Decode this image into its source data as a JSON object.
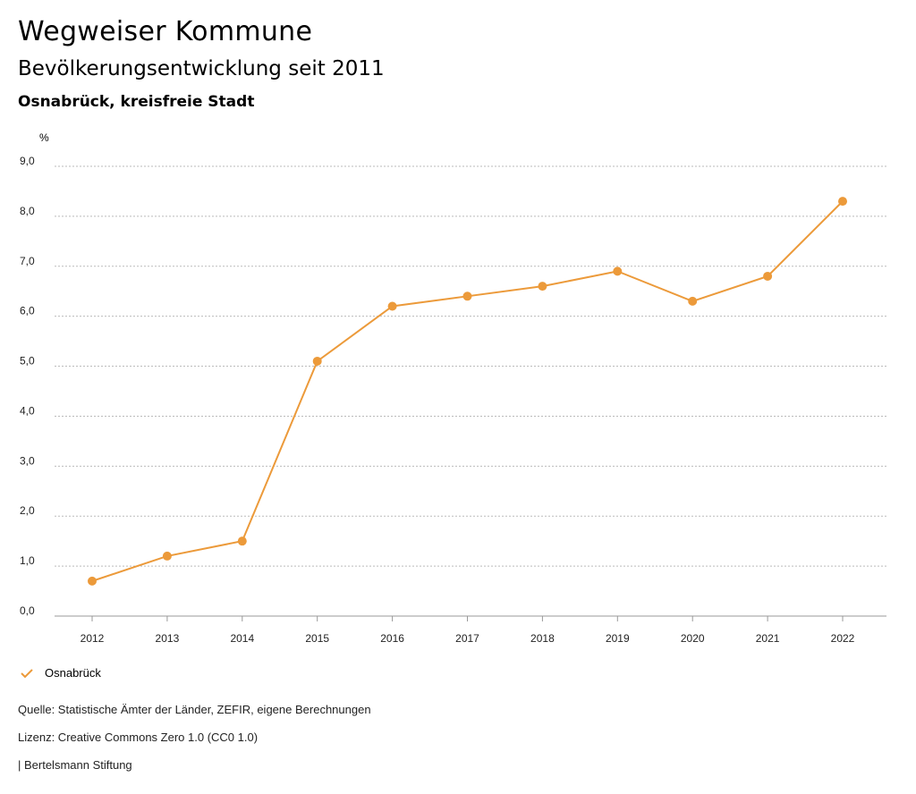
{
  "header": {
    "title": "Wegweiser Kommune",
    "subtitle": "Bevölkerungsentwicklung seit 2011",
    "region": "Osnabrück, kreisfreie Stadt",
    "unit": "%"
  },
  "chart_data": {
    "type": "line",
    "title": "Bevölkerungsentwicklung seit 2011",
    "xlabel": "",
    "ylabel": "%",
    "categories": [
      "2012",
      "2013",
      "2014",
      "2015",
      "2016",
      "2017",
      "2018",
      "2019",
      "2020",
      "2021",
      "2022"
    ],
    "series": [
      {
        "name": "Osnabrück",
        "values": [
          0.7,
          1.2,
          1.5,
          5.1,
          6.2,
          6.4,
          6.6,
          6.9,
          6.3,
          6.8,
          8.3
        ],
        "color": "#ec9a3a"
      }
    ],
    "ylim": [
      0,
      9
    ],
    "yticks": [
      "0,0",
      "1,0",
      "2,0",
      "3,0",
      "4,0",
      "5,0",
      "6,0",
      "7,0",
      "8,0",
      "9,0"
    ],
    "grid": true,
    "legend_position": "bottom-left"
  },
  "legend": {
    "label": "Osnabrück",
    "color": "#ec9a3a"
  },
  "footer": {
    "source": "Quelle: Statistische Ämter der Länder, ZEFIR, eigene Berechnungen",
    "license": "Lizenz: Creative Commons Zero 1.0 (CC0 1.0)",
    "publisher": "| Bertelsmann Stiftung"
  }
}
